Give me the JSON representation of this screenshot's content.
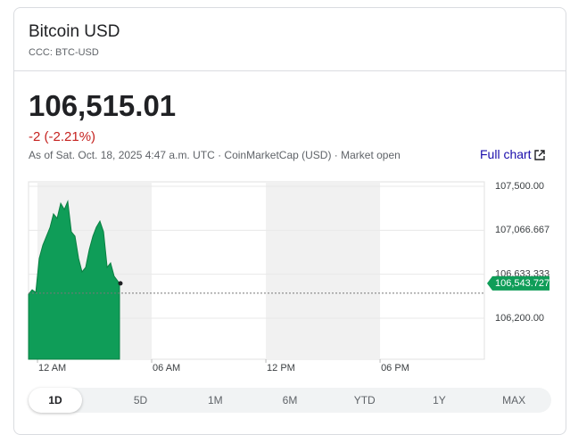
{
  "header": {
    "title": "Bitcoin USD",
    "ticker": "CCC: BTC-USD"
  },
  "quote": {
    "price": "106,515.01",
    "change": "-2 (-2.21%)",
    "timestamp": "As of Sat. Oct. 18, 2025 4:47 a.m. UTC · CoinMarketCap (USD) · Market open",
    "link": "Full chart"
  },
  "chart_data": {
    "type": "area",
    "color": "#0f9d58",
    "x": [
      -0.47,
      -0.28,
      -0.09,
      0.09,
      0.28,
      0.47,
      0.66,
      0.84,
      1.03,
      1.22,
      1.41,
      1.59,
      1.78,
      1.97,
      2.16,
      2.34,
      2.53,
      2.72,
      2.91,
      3.09,
      3.28,
      3.47,
      3.66,
      3.84,
      4.03,
      4.31
    ],
    "values": [
      106437,
      106481,
      106455,
      106789,
      106920,
      107008,
      107096,
      107228,
      107184,
      107333,
      107272,
      107351,
      107052,
      107008,
      106789,
      106657,
      106701,
      106876,
      107008,
      107096,
      107157,
      107052,
      106701,
      106745,
      106613,
      106543.727
    ],
    "xlim": [
      -0.47,
      23.48
    ],
    "xticks": [
      {
        "value": 0,
        "label": "12 AM"
      },
      {
        "value": 6,
        "label": "06 AM"
      },
      {
        "value": 12,
        "label": "12 PM"
      },
      {
        "value": 18,
        "label": "06 PM"
      }
    ],
    "ylim": [
      105796,
      107544
    ],
    "yticks": [
      {
        "value": 107500,
        "label": "107,500.00"
      },
      {
        "value": 107066.667,
        "label": "107,066.667"
      },
      {
        "value": 106633.333,
        "label": "106,633.333"
      },
      {
        "value": 106200,
        "label": "106,200.00"
      }
    ],
    "current": {
      "value": 106543.727,
      "label": "106,543.727"
    },
    "previous_close_line": 106447,
    "grid": true
  },
  "tabs": [
    "1D",
    "5D",
    "1M",
    "6M",
    "YTD",
    "1Y",
    "MAX"
  ]
}
